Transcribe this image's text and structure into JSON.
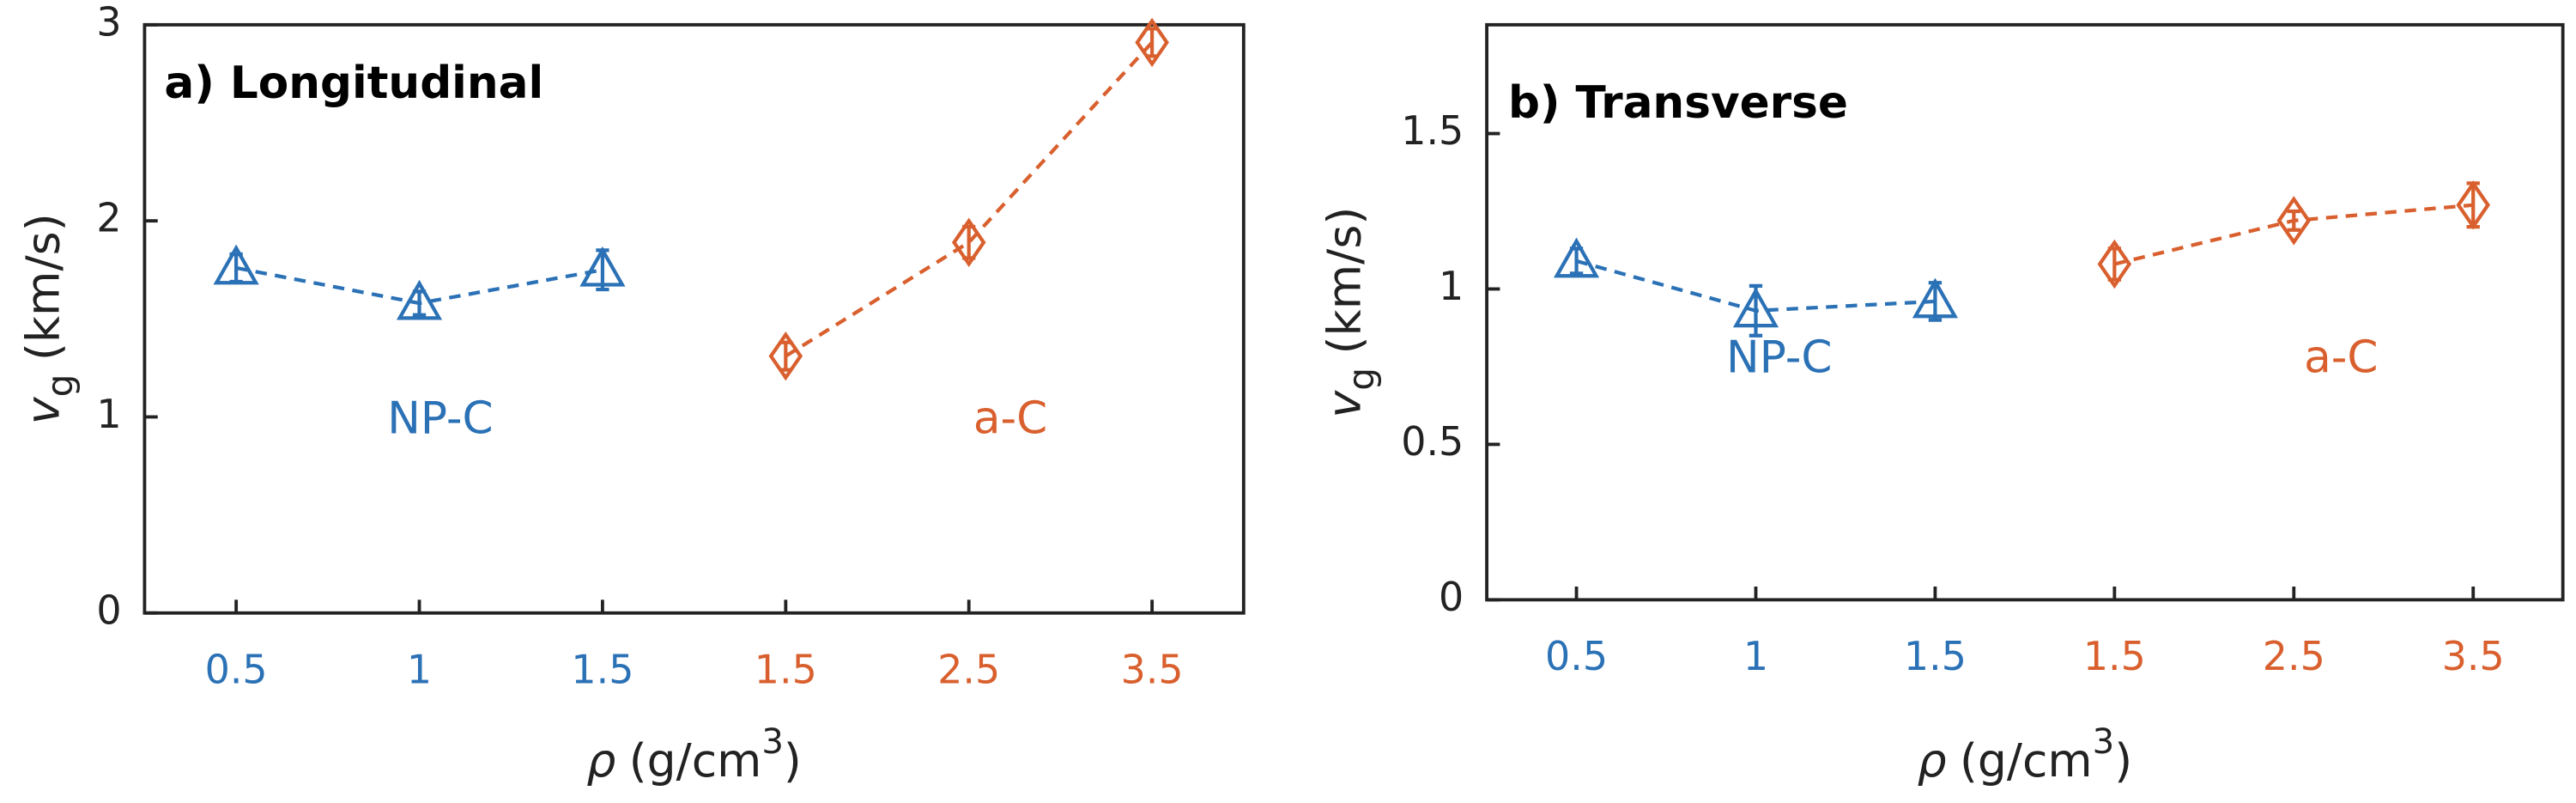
{
  "chart_data": [
    {
      "type": "line",
      "title": "a) Longitudinal",
      "ylabel": {
        "symbol": "v",
        "subscript": "g",
        "unit": "(km/s)"
      },
      "xlabel": {
        "symbol": "ρ",
        "unit": "(g/cm",
        "superscript": "3",
        "close": ")"
      },
      "categories": [
        "0.5",
        "1",
        "1.5",
        "1.5",
        "2.5",
        "3.5"
      ],
      "ylim": [
        0,
        3
      ],
      "yticks": [
        0,
        1,
        2,
        3
      ],
      "series": [
        {
          "name": "NP-C",
          "color": "#2b71b6",
          "marker": "triangle",
          "values": [
            1.76,
            1.58,
            1.75,
            null,
            null,
            null
          ],
          "errors": [
            0.07,
            0.06,
            0.1,
            null,
            null,
            null
          ]
        },
        {
          "name": "a-C",
          "color": "#d9602e",
          "marker": "diamond",
          "values": [
            null,
            null,
            null,
            1.31,
            1.89,
            2.91
          ],
          "errors": [
            null,
            null,
            null,
            0.07,
            0.08,
            0.07
          ]
        }
      ]
    },
    {
      "type": "line",
      "title": "b) Transverse",
      "ylabel": {
        "symbol": "v",
        "subscript": "g",
        "unit": "(km/s)"
      },
      "xlabel": {
        "symbol": "ρ",
        "unit": "(g/cm",
        "superscript": "3",
        "close": ")"
      },
      "categories": [
        "0.5",
        "1",
        "1.5",
        "1.5",
        "2.5",
        "3.5"
      ],
      "ylim": [
        0,
        1.85
      ],
      "yticks": [
        0,
        0.5,
        1,
        1.5
      ],
      "series": [
        {
          "name": "NP-C",
          "color": "#2b71b6",
          "marker": "triangle",
          "values": [
            1.09,
            0.93,
            0.96,
            null,
            null,
            null
          ],
          "errors": [
            0.04,
            0.08,
            0.06,
            null,
            null,
            null
          ]
        },
        {
          "name": "a-C",
          "color": "#d9602e",
          "marker": "diamond",
          "values": [
            null,
            null,
            null,
            1.08,
            1.22,
            1.27
          ],
          "errors": [
            null,
            null,
            null,
            0.05,
            0.03,
            0.07
          ]
        }
      ]
    }
  ]
}
